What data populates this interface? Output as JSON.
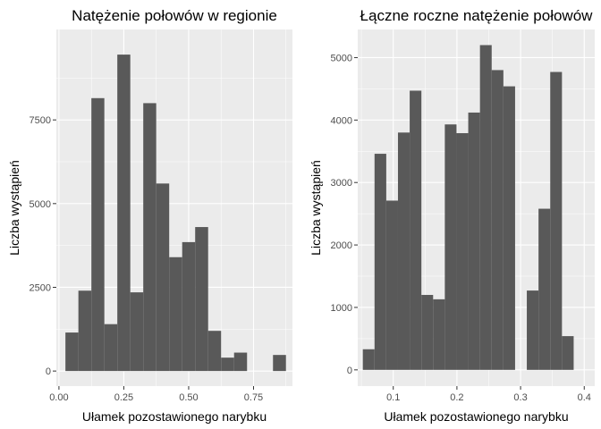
{
  "chart_data": [
    {
      "type": "bar",
      "title": "Natężenie połowów w regionie",
      "xlabel": "Ułamek pozostawionego narybku",
      "ylabel": "Liczba wystąpień",
      "xlim": [
        -0.01,
        0.9
      ],
      "ylim": [
        -450,
        10200
      ],
      "bin_width": 0.05,
      "x_ticks": [
        0.0,
        0.25,
        0.5,
        0.75
      ],
      "x_tick_labels": [
        "0.00",
        "0.25",
        "0.50",
        "0.75"
      ],
      "y_ticks": [
        0,
        2500,
        5000,
        7500
      ],
      "y_tick_labels": [
        "0",
        "2500",
        "5000",
        "7500"
      ],
      "bar_color": "#595959",
      "bins": [
        {
          "x": 0.05,
          "count": 1150
        },
        {
          "x": 0.1,
          "count": 2400
        },
        {
          "x": 0.15,
          "count": 8150
        },
        {
          "x": 0.2,
          "count": 1400
        },
        {
          "x": 0.25,
          "count": 9450
        },
        {
          "x": 0.3,
          "count": 2350
        },
        {
          "x": 0.35,
          "count": 8000
        },
        {
          "x": 0.4,
          "count": 5600
        },
        {
          "x": 0.45,
          "count": 3400
        },
        {
          "x": 0.5,
          "count": 3850
        },
        {
          "x": 0.55,
          "count": 4300
        },
        {
          "x": 0.6,
          "count": 1200
        },
        {
          "x": 0.65,
          "count": 400
        },
        {
          "x": 0.7,
          "count": 550
        },
        {
          "x": 0.75,
          "count": 0
        },
        {
          "x": 0.8,
          "count": 0
        },
        {
          "x": 0.85,
          "count": 480
        }
      ]
    },
    {
      "type": "bar",
      "title": "Łączne roczne natężenie połowów",
      "xlabel": "Ułamek pozostawionego narybku",
      "ylabel": "Liczba wystąpień",
      "xlim": [
        0.0442,
        0.4165
      ],
      "ylim": [
        -260,
        5450
      ],
      "bin_width": 0.0184,
      "x_ticks": [
        0.1,
        0.2,
        0.3,
        0.4
      ],
      "x_tick_labels": [
        "0.1",
        "0.2",
        "0.3",
        "0.4"
      ],
      "y_ticks": [
        0,
        1000,
        2000,
        3000,
        4000,
        5000
      ],
      "y_tick_labels": [
        "0",
        "1000",
        "2000",
        "3000",
        "4000",
        "5000"
      ],
      "bar_color": "#595959",
      "bins": [
        {
          "x": 0.0614,
          "count": 330
        },
        {
          "x": 0.0798,
          "count": 3460
        },
        {
          "x": 0.0982,
          "count": 2710
        },
        {
          "x": 0.1166,
          "count": 3800
        },
        {
          "x": 0.135,
          "count": 4470
        },
        {
          "x": 0.1534,
          "count": 1200
        },
        {
          "x": 0.1718,
          "count": 1130
        },
        {
          "x": 0.1902,
          "count": 3930
        },
        {
          "x": 0.2086,
          "count": 3790
        },
        {
          "x": 0.227,
          "count": 4120
        },
        {
          "x": 0.2454,
          "count": 5200
        },
        {
          "x": 0.2638,
          "count": 4800
        },
        {
          "x": 0.2822,
          "count": 4540
        },
        {
          "x": 0.3006,
          "count": 0
        },
        {
          "x": 0.319,
          "count": 1270
        },
        {
          "x": 0.3374,
          "count": 2580
        },
        {
          "x": 0.3558,
          "count": 4770
        },
        {
          "x": 0.3742,
          "count": 540
        }
      ]
    }
  ]
}
